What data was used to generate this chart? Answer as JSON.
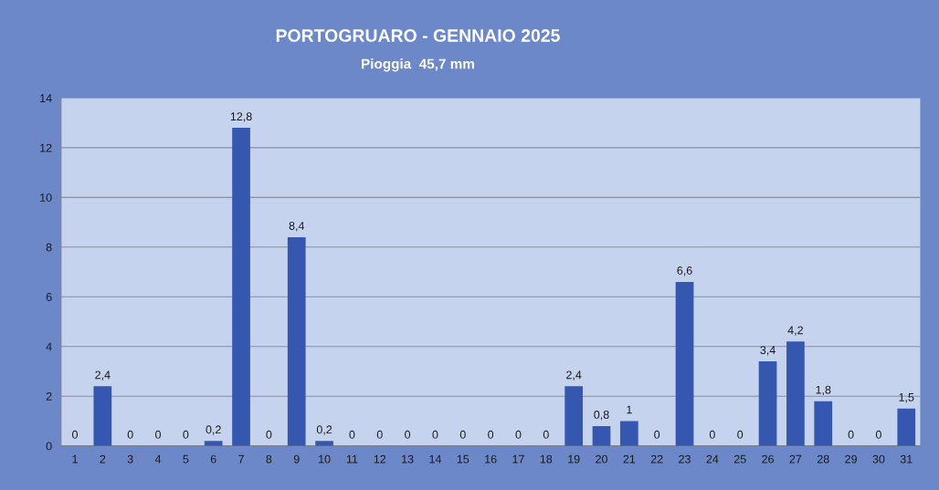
{
  "chart_data": {
    "type": "bar",
    "title": "PORTOGRUARO - GENNAIO 2025",
    "subtitle": "Pioggia  45,7 mm",
    "categories": [
      "1",
      "2",
      "3",
      "4",
      "5",
      "6",
      "7",
      "8",
      "9",
      "10",
      "11",
      "12",
      "13",
      "14",
      "15",
      "16",
      "17",
      "18",
      "19",
      "20",
      "21",
      "22",
      "23",
      "24",
      "25",
      "26",
      "27",
      "28",
      "29",
      "30",
      "31"
    ],
    "values": [
      0,
      2.4,
      0,
      0,
      0,
      0.2,
      12.8,
      0,
      8.4,
      0.2,
      0,
      0,
      0,
      0,
      0,
      0,
      0,
      0,
      2.4,
      0.8,
      1,
      0,
      6.6,
      0,
      0,
      3.4,
      4.2,
      1.8,
      0,
      0,
      1.5
    ],
    "value_labels": [
      "0",
      "2,4",
      "0",
      "0",
      "0",
      "0,2",
      "12,8",
      "0",
      "8,4",
      "0,2",
      "0",
      "0",
      "0",
      "0",
      "0",
      "0",
      "0",
      "0",
      "2,4",
      "0,8",
      "1",
      "0",
      "6,6",
      "0",
      "0",
      "3,4",
      "4,2",
      "1,8",
      "0",
      "0",
      "1,5"
    ],
    "color": "#3557b0",
    "ylim": [
      0,
      14
    ],
    "yticks": [
      0,
      2,
      4,
      6,
      8,
      10,
      12,
      14
    ],
    "grid": "y",
    "legend": false
  }
}
